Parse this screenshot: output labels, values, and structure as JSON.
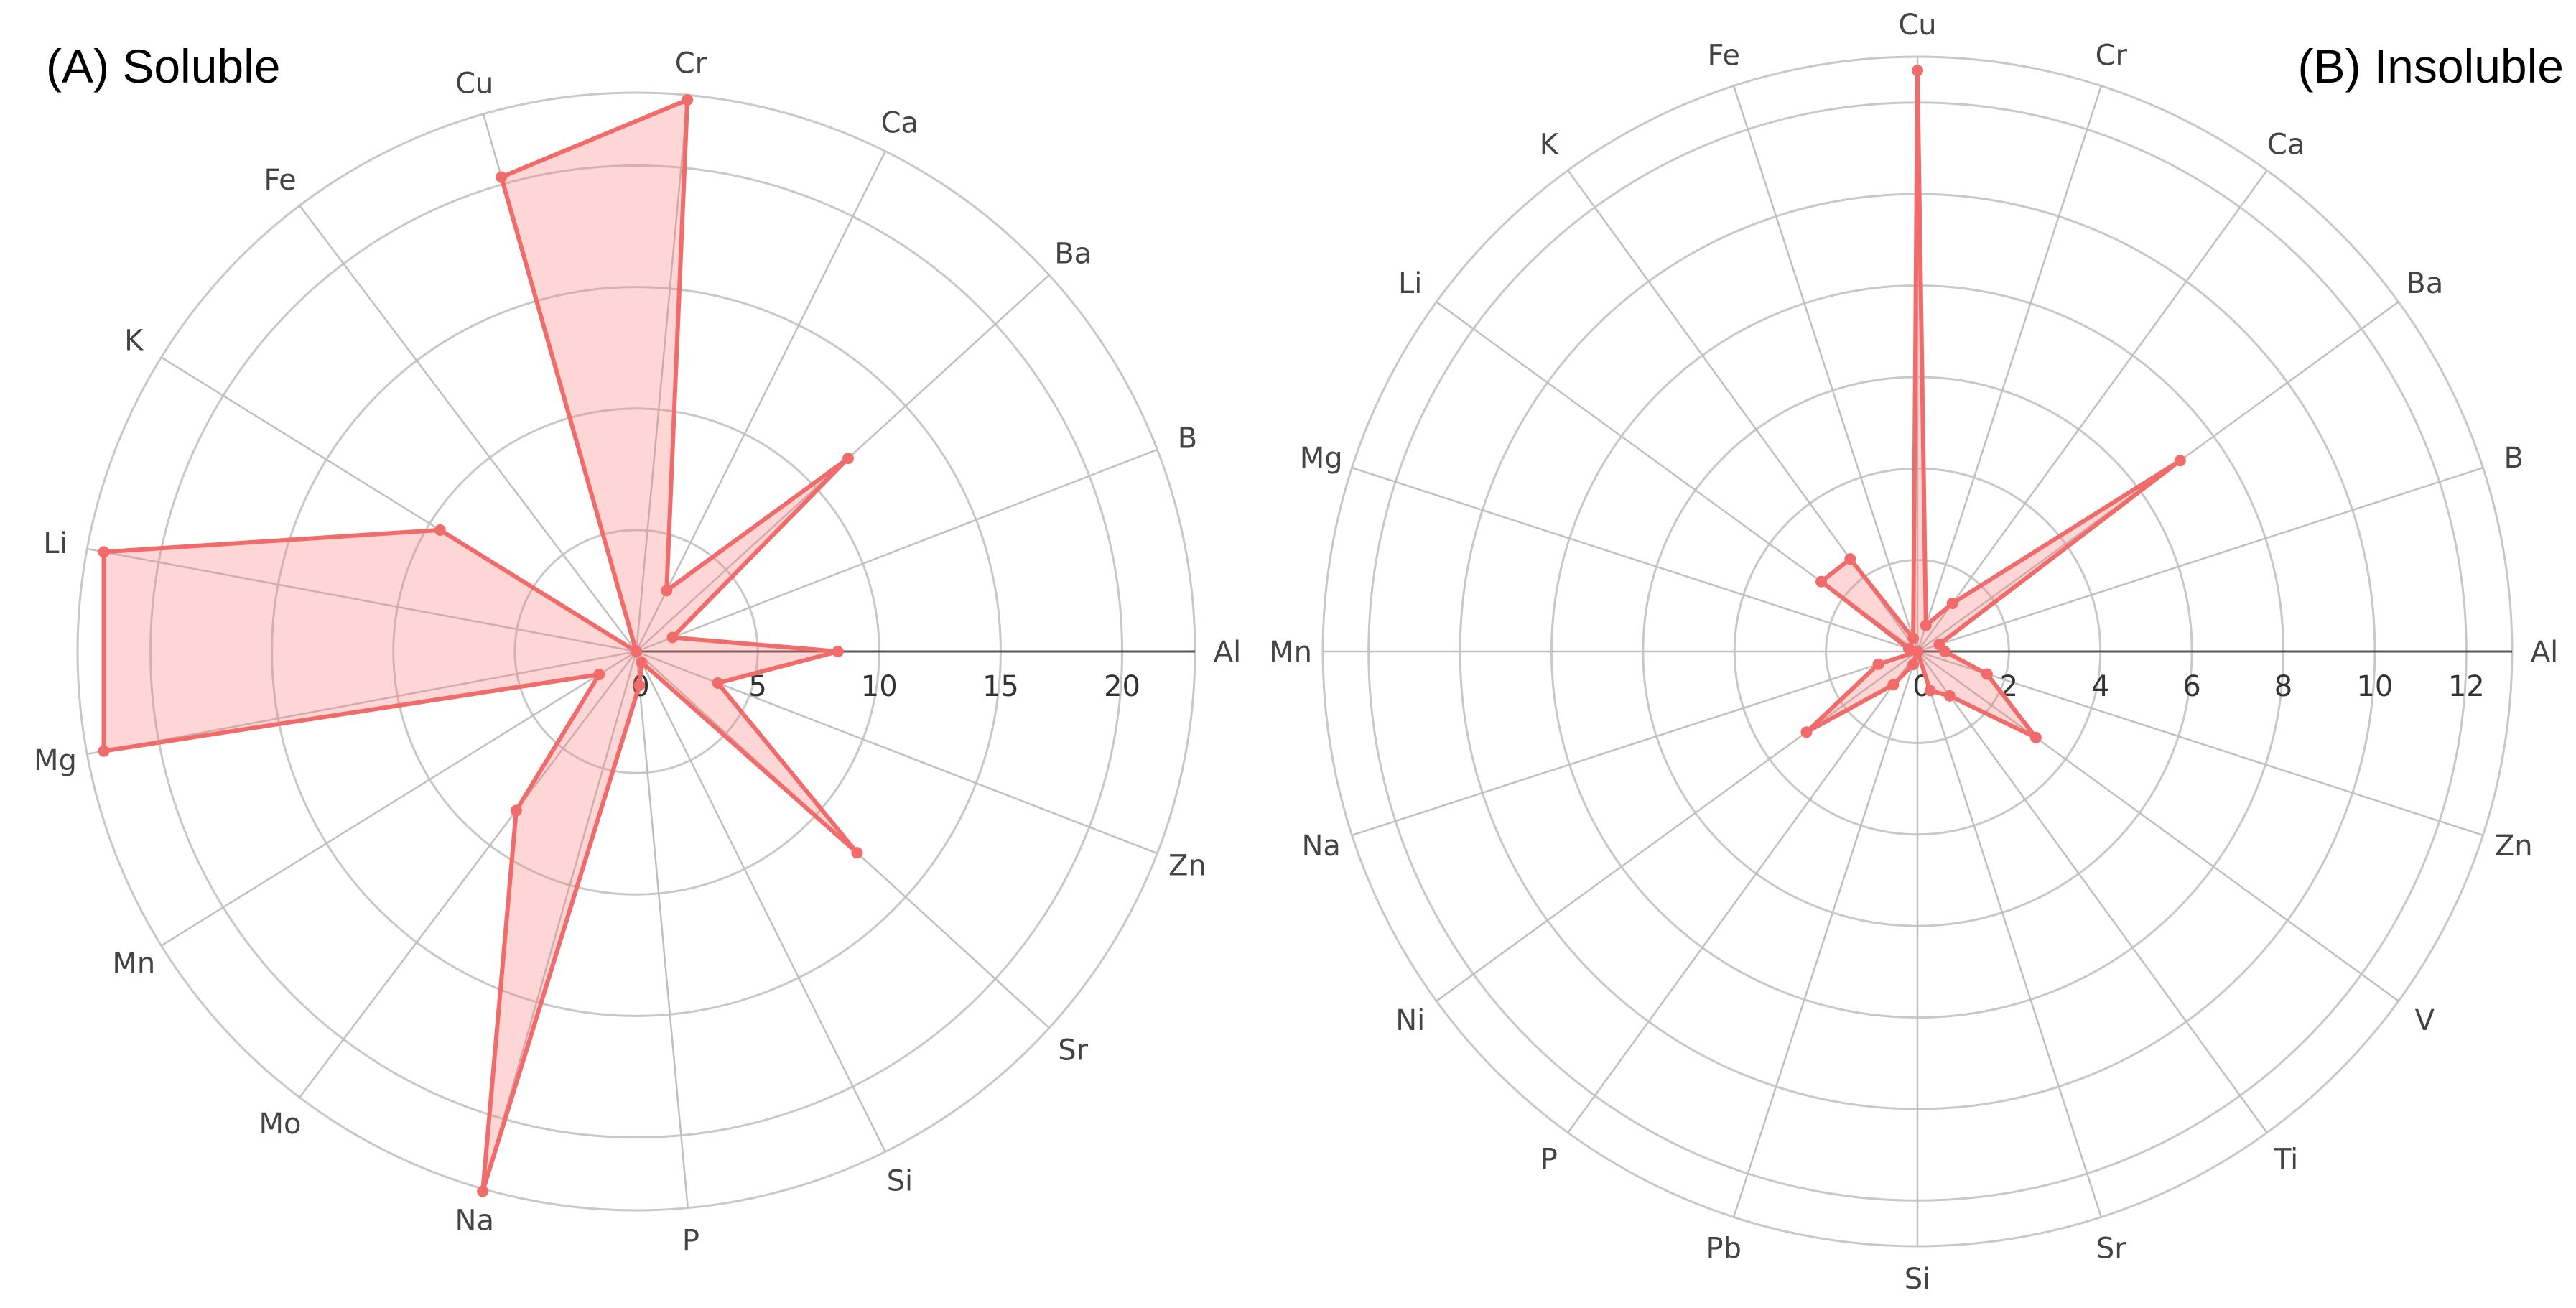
{
  "chart_data": [
    {
      "type": "radar",
      "title": "(A) Soluble",
      "categories": [
        "Al",
        "B",
        "Ba",
        "Ca",
        "Cr",
        "Cu",
        "Fe",
        "K",
        "Li",
        "Mg",
        "Mn",
        "Mo",
        "Na",
        "P",
        "Si",
        "Sr",
        "Zn"
      ],
      "values": [
        8.3,
        1.6,
        11.8,
        2.8,
        22.8,
        20.3,
        0.0,
        9.5,
        22.3,
        22.3,
        1.8,
        8.2,
        23.1,
        1.4,
        0.5,
        12.3,
        3.6
      ],
      "radial_range": [
        0,
        23
      ],
      "radial_ticks": [
        0,
        5,
        10,
        15,
        20
      ],
      "grid": true,
      "legend": "none",
      "color": "#f26b6b"
    },
    {
      "type": "radar",
      "title": "(B) Insoluble",
      "categories": [
        "Al",
        "B",
        "Ba",
        "Ca",
        "Cr",
        "Cu",
        "Fe",
        "K",
        "Li",
        "Mg",
        "Mn",
        "Na",
        "Ni",
        "P",
        "Pb",
        "Si",
        "Sr",
        "Ti",
        "V",
        "Zn"
      ],
      "values": [
        0.6,
        0.5,
        7.1,
        1.3,
        0.6,
        12.7,
        0.3,
        2.5,
        2.6,
        0.2,
        0.0,
        0.9,
        3.0,
        0.9,
        0.3,
        0.0,
        0.9,
        1.2,
        3.2,
        1.6
      ],
      "radial_range": [
        0,
        13
      ],
      "radial_ticks": [
        0,
        2,
        4,
        6,
        8,
        10,
        12
      ],
      "grid": true,
      "legend": "none",
      "color": "#f26b6b"
    }
  ]
}
